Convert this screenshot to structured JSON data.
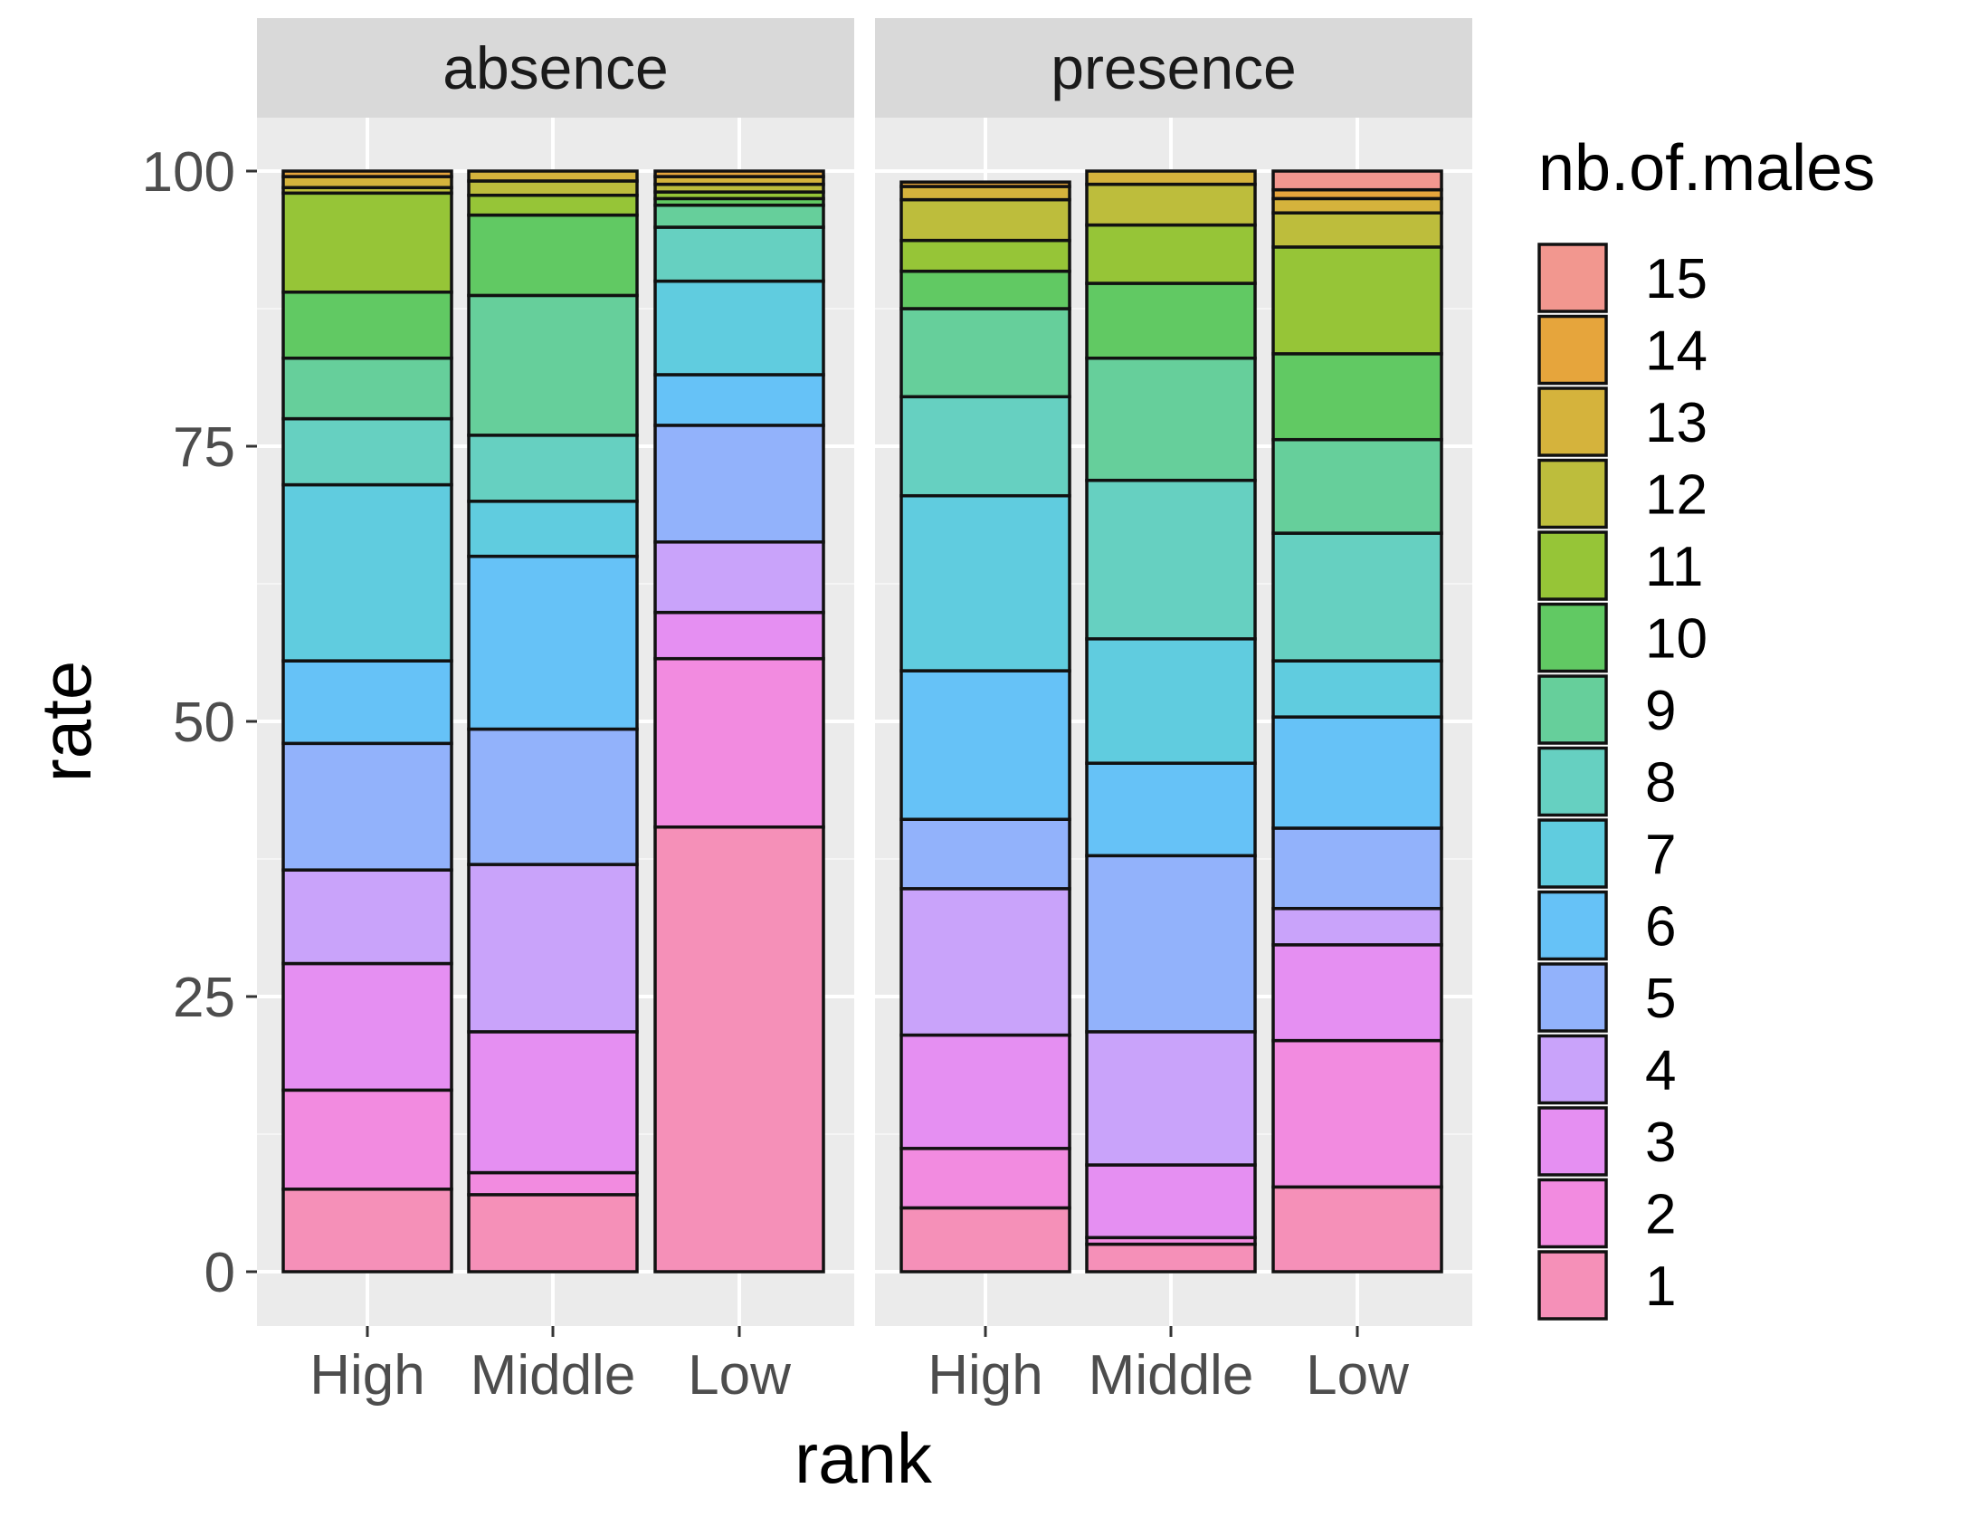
{
  "chart_data": {
    "type": "bar",
    "stacked": true,
    "normalized": true,
    "facet_by": "presence/absence",
    "xlabel": "rank",
    "ylabel": "rate",
    "ylim": [
      0,
      100
    ],
    "yticks": [
      0,
      25,
      50,
      75,
      100
    ],
    "categories": [
      "High",
      "Middle",
      "Low"
    ],
    "legend": {
      "title": "nb.of.males",
      "position": "right",
      "levels": [
        "15",
        "14",
        "13",
        "12",
        "11",
        "10",
        "9",
        "8",
        "7",
        "6",
        "5",
        "4",
        "3",
        "2",
        "1"
      ]
    },
    "colors": {
      "1": "#f590b8",
      "2": "#f28be0",
      "3": "#e58ff2",
      "4": "#c9a3fa",
      "5": "#92b2fb",
      "6": "#66c2f7",
      "7": "#60ccdf",
      "8": "#66d0c1",
      "9": "#66cf9b",
      "10": "#61c963",
      "11": "#96c537",
      "12": "#bdbd3c",
      "13": "#d5b33c",
      "14": "#e6a53c",
      "15": "#f2978f"
    },
    "panels": [
      {
        "name": "absence",
        "bars": [
          {
            "rank": "High",
            "segments": [
              {
                "males": "1",
                "value": 7.5
              },
              {
                "males": "2",
                "value": 9.0
              },
              {
                "males": "3",
                "value": 11.5
              },
              {
                "males": "4",
                "value": 8.5
              },
              {
                "males": "5",
                "value": 11.5
              },
              {
                "males": "6",
                "value": 7.5
              },
              {
                "males": "7",
                "value": 16.0
              },
              {
                "males": "8",
                "value": 6.0
              },
              {
                "males": "9",
                "value": 5.5
              },
              {
                "males": "10",
                "value": 6.0
              },
              {
                "males": "11",
                "value": 9.0
              },
              {
                "males": "12",
                "value": 0.5
              },
              {
                "males": "13",
                "value": 1.0
              },
              {
                "males": "14",
                "value": 0.5
              }
            ]
          },
          {
            "rank": "Middle",
            "segments": [
              {
                "males": "1",
                "value": 7.0
              },
              {
                "males": "2",
                "value": 2.0
              },
              {
                "males": "3",
                "value": 12.8
              },
              {
                "males": "4",
                "value": 15.2
              },
              {
                "males": "5",
                "value": 12.3
              },
              {
                "males": "6",
                "value": 15.7
              },
              {
                "males": "7",
                "value": 5.0
              },
              {
                "males": "8",
                "value": 6.0
              },
              {
                "males": "9",
                "value": 12.7
              },
              {
                "males": "10",
                "value": 7.3
              },
              {
                "males": "11",
                "value": 1.8
              },
              {
                "males": "12",
                "value": 1.3
              },
              {
                "males": "13",
                "value": 0.9
              }
            ]
          },
          {
            "rank": "Low",
            "segments": [
              {
                "males": "1",
                "value": 40.4
              },
              {
                "males": "2",
                "value": 15.3
              },
              {
                "males": "3",
                "value": 4.2
              },
              {
                "males": "4",
                "value": 6.4
              },
              {
                "males": "5",
                "value": 10.6
              },
              {
                "males": "6",
                "value": 4.6
              },
              {
                "males": "7",
                "value": 8.5
              },
              {
                "males": "8",
                "value": 4.9
              },
              {
                "males": "9",
                "value": 2.0
              },
              {
                "males": "10",
                "value": 0.6
              },
              {
                "males": "11",
                "value": 0.6
              },
              {
                "males": "12",
                "value": 0.7
              },
              {
                "males": "13",
                "value": 0.7
              },
              {
                "males": "14",
                "value": 0.5
              }
            ]
          }
        ]
      },
      {
        "name": "presence",
        "bars": [
          {
            "rank": "High",
            "segments": [
              {
                "males": "1",
                "value": 5.8
              },
              {
                "males": "2",
                "value": 5.4
              },
              {
                "males": "3",
                "value": 10.3
              },
              {
                "males": "4",
                "value": 13.3
              },
              {
                "males": "5",
                "value": 6.3
              },
              {
                "males": "6",
                "value": 13.5
              },
              {
                "males": "7",
                "value": 15.9
              },
              {
                "males": "8",
                "value": 9.0
              },
              {
                "males": "9",
                "value": 8.0
              },
              {
                "males": "10",
                "value": 3.4
              },
              {
                "males": "11",
                "value": 2.8
              },
              {
                "males": "12",
                "value": 3.7
              },
              {
                "males": "13",
                "value": 1.2
              },
              {
                "males": "14",
                "value": 0.4
              }
            ]
          },
          {
            "rank": "Middle",
            "segments": [
              {
                "males": "1",
                "value": 2.5
              },
              {
                "males": "2",
                "value": 0.6
              },
              {
                "males": "3",
                "value": 6.6
              },
              {
                "males": "4",
                "value": 12.1
              },
              {
                "males": "5",
                "value": 16.0
              },
              {
                "males": "6",
                "value": 8.4
              },
              {
                "males": "7",
                "value": 11.3
              },
              {
                "males": "8",
                "value": 14.4
              },
              {
                "males": "9",
                "value": 11.1
              },
              {
                "males": "10",
                "value": 6.8
              },
              {
                "males": "11",
                "value": 5.3
              },
              {
                "males": "12",
                "value": 3.7
              },
              {
                "males": "13",
                "value": 1.2
              }
            ]
          },
          {
            "rank": "Low",
            "segments": [
              {
                "males": "1",
                "value": 7.7
              },
              {
                "males": "2",
                "value": 13.3
              },
              {
                "males": "3",
                "value": 8.7
              },
              {
                "males": "4",
                "value": 3.3
              },
              {
                "males": "5",
                "value": 7.3
              },
              {
                "males": "6",
                "value": 10.1
              },
              {
                "males": "7",
                "value": 5.1
              },
              {
                "males": "8",
                "value": 11.6
              },
              {
                "males": "9",
                "value": 8.5
              },
              {
                "males": "10",
                "value": 7.8
              },
              {
                "males": "11",
                "value": 9.7
              },
              {
                "males": "12",
                "value": 3.1
              },
              {
                "males": "13",
                "value": 1.3
              },
              {
                "males": "14",
                "value": 0.8
              },
              {
                "males": "15",
                "value": 1.7
              }
            ]
          }
        ]
      }
    ]
  }
}
